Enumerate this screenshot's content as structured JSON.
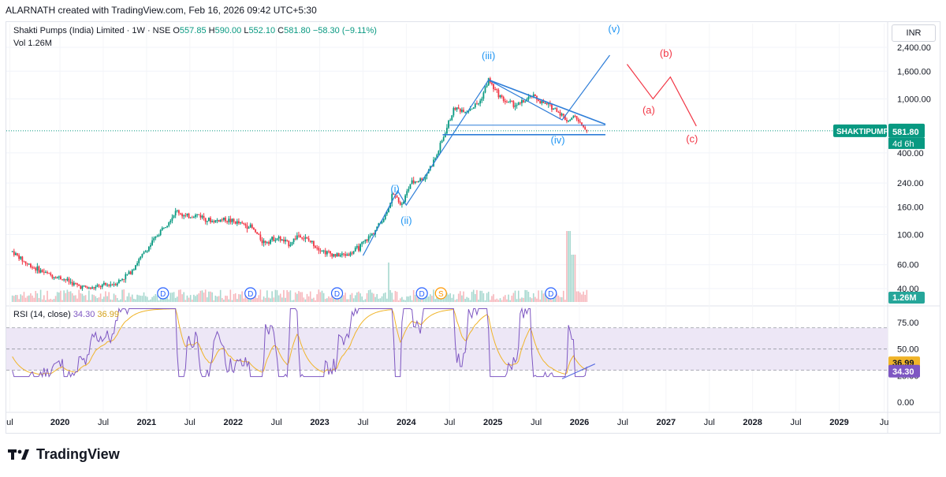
{
  "caption": "ALARNATH created with TradingView.com, Feb 16, 2026 09:42 UTC+5:30",
  "legend": {
    "title": "Shakti Pumps (India) Limited · 1W · NSE",
    "o_label": "O",
    "o_value": "557.85",
    "h_label": "H",
    "h_value": "590.00",
    "l_label": "L",
    "l_value": "552.10",
    "c_label": "C",
    "c_value": "581.80",
    "change": "−58.30 (−9.11%)"
  },
  "volume": {
    "label": "Vol",
    "value": "1.26M",
    "badge": "1.26M"
  },
  "rsi": {
    "label": "RSI (14, close)",
    "value": "34.30",
    "ma_value": "36.99"
  },
  "currency_button": "INR",
  "symbol_badge": {
    "symbol": "SHAKTIPUMP",
    "price": "581.80",
    "countdown": "4d 6h"
  },
  "branding": "TradingView",
  "colors": {
    "up": "#089981",
    "down": "#f23645",
    "wave": "#2f7ed8",
    "wave_label": "#2196f3",
    "correction": "#f23645",
    "rsi": "#7e57c2",
    "rsi_ma": "#f0b429",
    "rsi_band": "#ede7f6"
  },
  "chart_data": [
    {
      "type": "candlestick",
      "symbol": "SHAKTIPUMP",
      "interval": "1W",
      "scale": "log",
      "y_ticks": [
        40,
        60,
        100,
        160,
        240,
        400,
        1000,
        1600,
        2400
      ],
      "y_tick_labels": [
        "40.00",
        "60.00",
        "100.00",
        "160.00",
        "240.00",
        "400.00",
        "1,000.00",
        "1,600.00",
        "2,400.00"
      ],
      "x_tick_labels": [
        "ul",
        "2020",
        "Jul",
        "2021",
        "Jul",
        "2022",
        "Jul",
        "2023",
        "Jul",
        "2024",
        "Jul",
        "2025",
        "Jul",
        "2026",
        "Jul",
        "2027",
        "Jul",
        "2028",
        "Jul",
        "2029",
        "Ju"
      ],
      "last_price": 581.8,
      "price_path": [
        [
          2019.45,
          75
        ],
        [
          2019.6,
          62
        ],
        [
          2019.75,
          55
        ],
        [
          2019.9,
          50
        ],
        [
          2020.05,
          47
        ],
        [
          2020.2,
          42
        ],
        [
          2020.35,
          40
        ],
        [
          2020.5,
          42
        ],
        [
          2020.65,
          44
        ],
        [
          2020.8,
          52
        ],
        [
          2020.95,
          70
        ],
        [
          2021.05,
          85
        ],
        [
          2021.2,
          115
        ],
        [
          2021.35,
          150
        ],
        [
          2021.45,
          135
        ],
        [
          2021.6,
          140
        ],
        [
          2021.75,
          125
        ],
        [
          2021.9,
          130
        ],
        [
          2022.05,
          122
        ],
        [
          2022.2,
          115
        ],
        [
          2022.35,
          88
        ],
        [
          2022.5,
          95
        ],
        [
          2022.65,
          85
        ],
        [
          2022.75,
          100
        ],
        [
          2022.9,
          88
        ],
        [
          2023.05,
          75
        ],
        [
          2023.2,
          70
        ],
        [
          2023.35,
          72
        ],
        [
          2023.45,
          80
        ],
        [
          2023.6,
          100
        ],
        [
          2023.75,
          135
        ],
        [
          2023.85,
          200
        ],
        [
          2023.95,
          165
        ],
        [
          2024.05,
          240
        ],
        [
          2024.2,
          260
        ],
        [
          2024.35,
          380
        ],
        [
          2024.45,
          570
        ],
        [
          2024.55,
          850
        ],
        [
          2024.7,
          820
        ],
        [
          2024.85,
          950
        ],
        [
          2024.95,
          1380
        ],
        [
          2025.05,
          1100
        ],
        [
          2025.15,
          950
        ],
        [
          2025.3,
          900
        ],
        [
          2025.45,
          1050
        ],
        [
          2025.6,
          920
        ],
        [
          2025.75,
          820
        ],
        [
          2025.85,
          700
        ],
        [
          2025.95,
          730
        ],
        [
          2026.05,
          600
        ],
        [
          2026.1,
          581.8
        ]
      ],
      "wave_labels": [
        "(i)",
        "(ii)",
        "(iii)",
        "(iv)",
        "(v)"
      ],
      "correction_labels": [
        "(a)",
        "(b)",
        "(c)"
      ],
      "dividend_markers": [
        "D",
        "D",
        "D",
        "D",
        "D"
      ],
      "split_marker": "S",
      "volume_peak_label": "1.26M"
    },
    {
      "type": "line",
      "name": "RSI (14, close)",
      "y_ticks": [
        0,
        25,
        50,
        75
      ],
      "y_tick_labels": [
        "0.00",
        "25.00",
        "50.00",
        "75.00"
      ],
      "band": [
        30,
        70
      ],
      "latest": {
        "rsi": 34.3,
        "ma": 36.99
      }
    }
  ]
}
